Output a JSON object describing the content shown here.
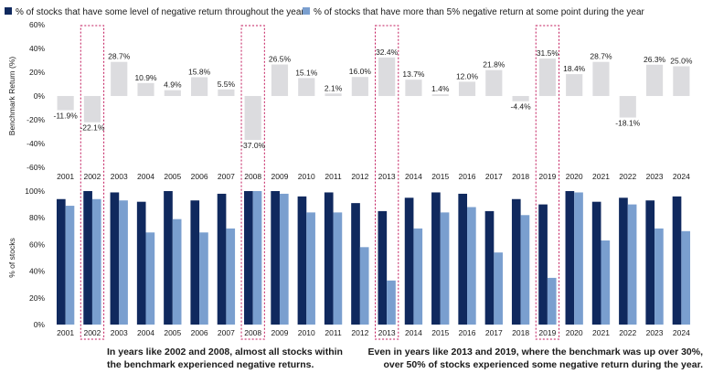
{
  "chart_data": [
    {
      "type": "bar",
      "title": "",
      "xlabel": "",
      "ylabel": "Benchmark Return (%)",
      "ylim": [
        -60,
        60
      ],
      "yticks": [
        "60%",
        "40%",
        "20%",
        "0%",
        "-20%",
        "-40%",
        "-60%"
      ],
      "yticks_values": [
        60,
        40,
        20,
        0,
        -20,
        -40,
        -60
      ],
      "categories": [
        "2001",
        "2002",
        "2003",
        "2004",
        "2005",
        "2006",
        "2007",
        "2008",
        "2009",
        "2010",
        "2011",
        "2012",
        "2013",
        "2014",
        "2015",
        "2016",
        "2017",
        "2018",
        "2019",
        "2020",
        "2021",
        "2022",
        "2023",
        "2024"
      ],
      "values": [
        -11.9,
        -22.1,
        28.7,
        10.9,
        4.9,
        15.8,
        5.5,
        -37.0,
        26.5,
        15.1,
        2.1,
        16.0,
        32.4,
        13.7,
        1.4,
        12.0,
        21.8,
        -4.4,
        31.5,
        18.4,
        28.7,
        -18.1,
        26.3,
        25.0
      ],
      "value_labels": [
        "-11.9%",
        "-22.1%",
        "28.7%",
        "10.9%",
        "4.9%",
        "15.8%",
        "5.5%",
        "-37.0%",
        "26.5%",
        "15.1%",
        "2.1%",
        "16.0%",
        "32.4%",
        "13.7%",
        "1.4%",
        "12.0%",
        "21.8%",
        "-4.4%",
        "31.5%",
        "18.4%",
        "28.7%",
        "-18.1%",
        "26.3%",
        "25.0%"
      ],
      "color": "#dcdcdf"
    },
    {
      "type": "bar",
      "title": "",
      "xlabel": "",
      "ylabel": "% of stocks",
      "ylim": [
        0,
        100
      ],
      "yticks": [
        "100%",
        "80%",
        "60%",
        "40%",
        "20%",
        "0%"
      ],
      "yticks_values": [
        100,
        80,
        60,
        40,
        20,
        0
      ],
      "categories": [
        "2001",
        "2002",
        "2003",
        "2004",
        "2005",
        "2006",
        "2007",
        "2008",
        "2009",
        "2010",
        "2011",
        "2012",
        "2013",
        "2014",
        "2015",
        "2016",
        "2017",
        "2018",
        "2019",
        "2020",
        "2021",
        "2022",
        "2023",
        "2024"
      ],
      "series": [
        {
          "name": "% of stocks that have some level of negative return throughout the year",
          "color": "#10295e",
          "values": [
            94,
            100,
            99,
            92,
            100,
            93,
            98,
            100,
            100,
            96,
            99,
            91,
            85,
            95,
            99,
            98,
            85,
            94,
            90,
            100,
            92,
            95,
            93,
            96
          ]
        },
        {
          "name": "% of stocks that have more than 5% negative return at some point during the year",
          "color": "#7a9fcf",
          "values": [
            89,
            94,
            93,
            69,
            79,
            69,
            72,
            100,
            98,
            84,
            84,
            58,
            33,
            72,
            84,
            88,
            54,
            82,
            35,
            99,
            63,
            90,
            72,
            70
          ]
        }
      ],
      "highlighted_years": [
        "2002",
        "2008",
        "2013",
        "2019"
      ]
    }
  ],
  "legend": {
    "item1": "% of stocks that have some level of negative return throughout the year",
    "item2": "% of stocks that have more than 5% negative return at some point during the year"
  },
  "notes": {
    "left_line1": "In years like 2002 and 2008, almost all stocks within",
    "left_line2": "the benchmark experienced negative returns.",
    "right_line1": "Even in years like 2013 and 2019, where the benchmark was up over 30%,",
    "right_line2": "over 50% of stocks experienced some negative return during the year."
  },
  "colors": {
    "dark": "#10295e",
    "light": "#7a9fcf",
    "benchmark": "#dcdcdf",
    "highlight": "#c2185b"
  }
}
